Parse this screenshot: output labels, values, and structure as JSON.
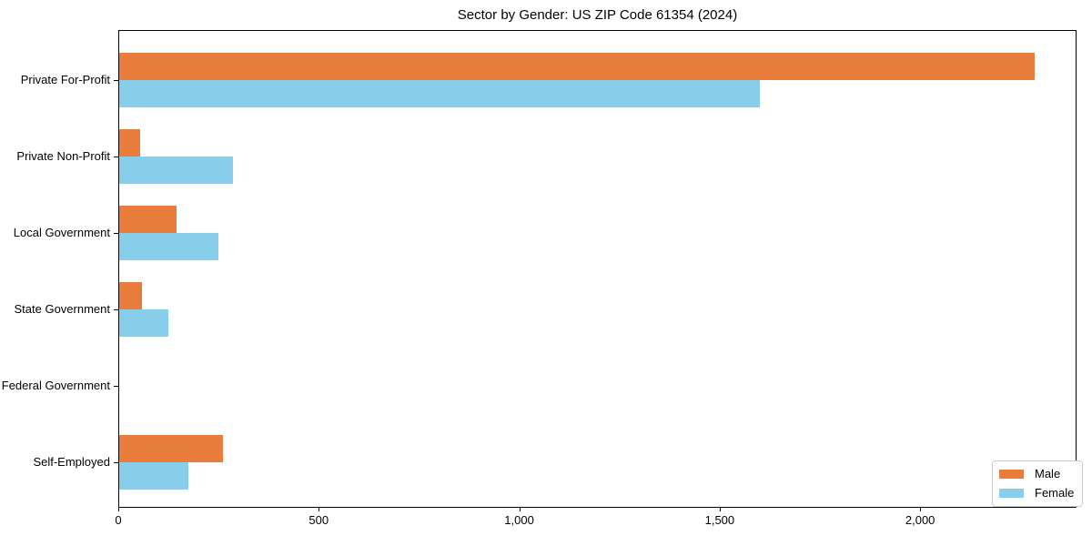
{
  "chart_data": {
    "type": "bar",
    "orientation": "horizontal",
    "title": "Sector by Gender: US ZIP Code 61354 (2024)",
    "categories": [
      "Private For-Profit",
      "Private Non-Profit",
      "Local Government",
      "State Government",
      "Federal Government",
      "Self-Employed"
    ],
    "series": [
      {
        "name": "Male",
        "color": "#e87d3b",
        "values": [
          2285,
          55,
          145,
          60,
          0,
          260
        ]
      },
      {
        "name": "Female",
        "color": "#87ceeb",
        "values": [
          1600,
          285,
          250,
          125,
          0,
          175
        ]
      }
    ],
    "xlabel": "",
    "ylabel": "",
    "x_ticks": [
      0,
      500,
      1000,
      1500,
      2000
    ],
    "x_tick_labels": [
      "0",
      "500",
      "1,000",
      "1,500",
      "2,000"
    ],
    "xlim": [
      0,
      2390
    ],
    "grid": false,
    "legend": {
      "position": "lower-right",
      "entries": [
        "Male",
        "Female"
      ]
    },
    "axis_color": "#000000",
    "background_color": "#ffffff"
  }
}
